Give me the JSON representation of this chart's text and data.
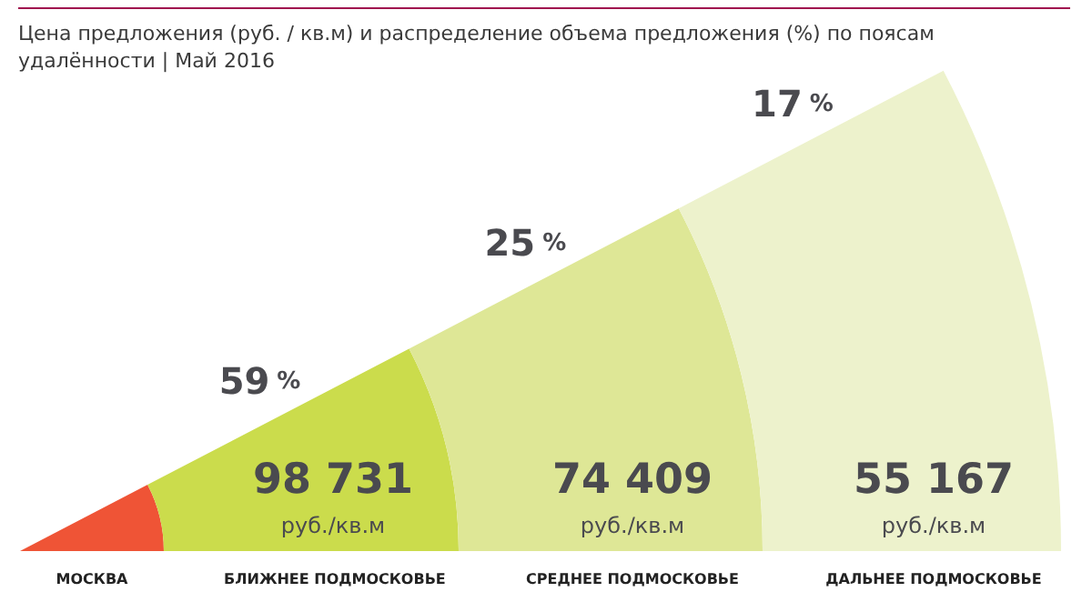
{
  "chart_data": {
    "type": "other",
    "title": "Цена предложения (руб. / кв.м) и распределение объема предложения (%) по поясам удалённости | Май 2016",
    "categories": [
      "МОСКВА",
      "БЛИЖНЕЕ ПОДМОСКОВЬЕ",
      "СРЕДНЕЕ ПОДМОСКОВЬЕ",
      "ДАЛЬНЕЕ ПОДМОСКОВЬЕ"
    ],
    "data_labels": true,
    "series": [
      {
        "name": "%",
        "color": "#4a4a4f",
        "values": [
          null,
          59,
          25,
          17
        ]
      },
      {
        "name": "руб./кв.м",
        "colors": [
          "#ef5436",
          "#cbdc4c",
          "#dee796",
          "#edf2cc"
        ],
        "values": [
          null,
          98731,
          74409,
          55167
        ]
      }
    ]
  }
}
